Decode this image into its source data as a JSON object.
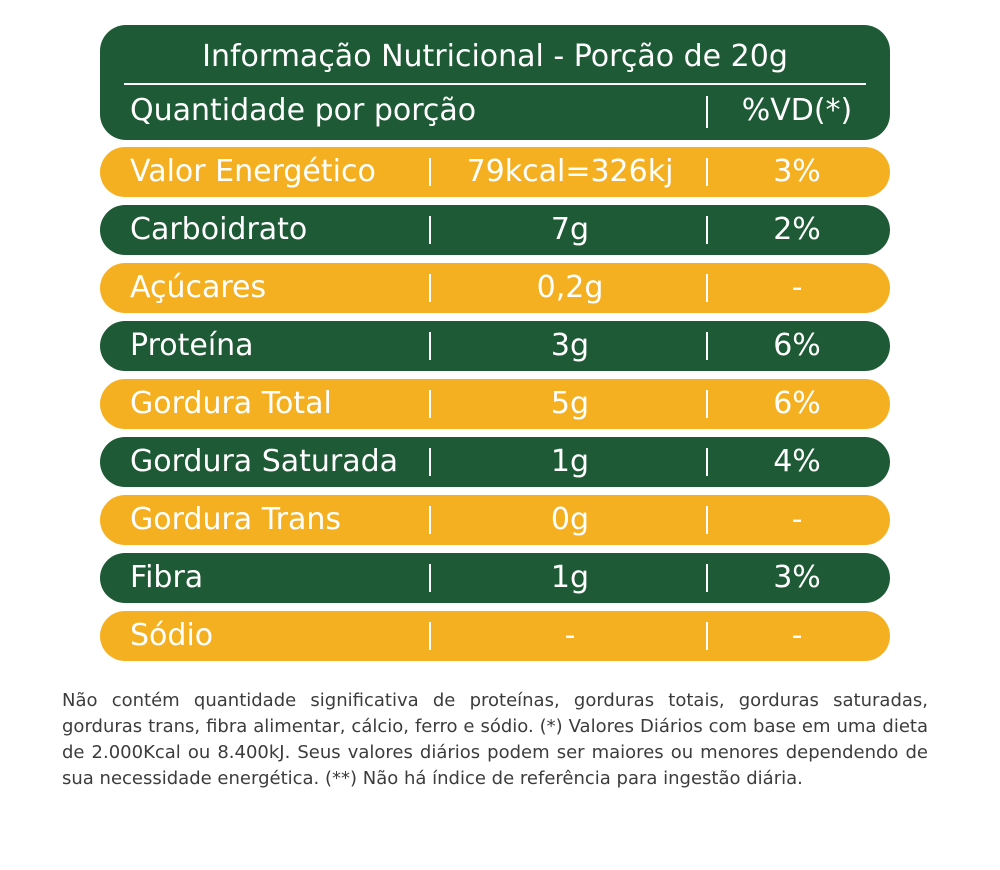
{
  "header": {
    "title": "Informação Nutricional - Porção de 20g",
    "quantity_label": "Quantidade por porção",
    "dv_label": "%VD(*)"
  },
  "rows": [
    {
      "name": "Valor Energético",
      "quantity": "79kcal=326kj",
      "dv": "3%",
      "color": "#f5b021"
    },
    {
      "name": "Carboidrato",
      "quantity": "7g",
      "dv": "2%",
      "color": "#1e5a35"
    },
    {
      "name": "Açúcares",
      "quantity": "0,2g",
      "dv": "-",
      "color": "#f5b021"
    },
    {
      "name": "Proteína",
      "quantity": "3g",
      "dv": "6%",
      "color": "#1e5a35"
    },
    {
      "name": "Gordura Total",
      "quantity": "5g",
      "dv": "6%",
      "color": "#f5b021"
    },
    {
      "name": "Gordura Saturada",
      "quantity": "1g",
      "dv": "4%",
      "color": "#1e5a35"
    },
    {
      "name": "Gordura Trans",
      "quantity": "0g",
      "dv": "-",
      "color": "#f5b021"
    },
    {
      "name": "Fibra",
      "quantity": "1g",
      "dv": "3%",
      "color": "#1e5a35"
    },
    {
      "name": "Sódio",
      "quantity": "-",
      "dv": "-",
      "color": "#f5b021"
    }
  ],
  "footnote": "Não contém quantidade significativa de proteínas, gorduras totais, gorduras saturadas, gorduras trans, fibra alimentar, cálcio, ferro e sódio. (*) Valores Diários com base em uma dieta de 2.000Kcal ou 8.400kJ. Seus valores diários podem ser maiores ou menores dependendo de sua necessidade energética. (**) Não há índice de referência para ingestão diária."
}
